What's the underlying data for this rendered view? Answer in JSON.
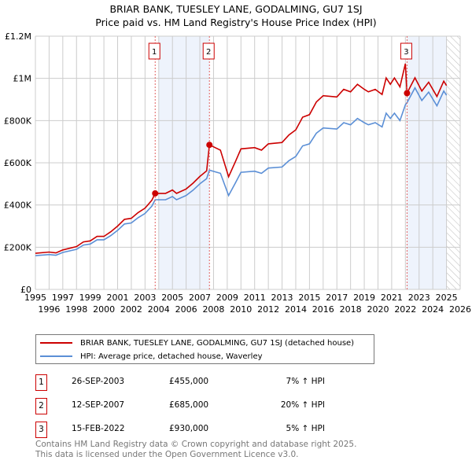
{
  "chart_data": {
    "type": "line",
    "title": "BRIAR BANK, TUESLEY LANE, GODALMING, GU7 1SJ",
    "subtitle": "Price paid vs. HM Land Registry's House Price Index (HPI)",
    "xlim": [
      1995,
      2026
    ],
    "ylim": [
      0,
      1200000
    ],
    "x_ticks": [
      "1995",
      "1996",
      "1997",
      "1998",
      "1999",
      "2000",
      "2001",
      "2002",
      "2003",
      "2004",
      "2005",
      "2006",
      "2007",
      "2008",
      "2009",
      "2010",
      "2011",
      "2012",
      "2013",
      "2014",
      "2015",
      "2016",
      "2017",
      "2018",
      "2019",
      "2020",
      "2021",
      "2022",
      "2023",
      "2024",
      "2025",
      "2026"
    ],
    "y_ticks": [
      {
        "v": 0,
        "label": "£0"
      },
      {
        "v": 200000,
        "label": "£200K"
      },
      {
        "v": 400000,
        "label": "£400K"
      },
      {
        "v": 600000,
        "label": "£600K"
      },
      {
        "v": 800000,
        "label": "£800K"
      },
      {
        "v": 1000000,
        "label": "£1M"
      },
      {
        "v": 1200000,
        "label": "£1.2M"
      }
    ],
    "x": [
      1995,
      1996,
      1996.5,
      1997,
      1998,
      1998.5,
      1999,
      1999.5,
      2000,
      2000.5,
      2001,
      2001.5,
      2002,
      2002.5,
      2003,
      2003.5,
      2003.74,
      2004.5,
      2005,
      2005.3,
      2006,
      2006.5,
      2007,
      2007.5,
      2007.7,
      2008.5,
      2009.1,
      2009.6,
      2010,
      2011,
      2011.5,
      2012,
      2013,
      2013.5,
      2014,
      2014.5,
      2015,
      2015.5,
      2016,
      2017,
      2017.5,
      2018,
      2018.5,
      2019,
      2019.3,
      2019.8,
      2020.3,
      2020.6,
      2020.9,
      2021.2,
      2021.6,
      2022.0,
      2022.12,
      2022.7,
      2023.2,
      2023.7,
      2024.3,
      2024.8,
      2025.0
    ],
    "series": [
      {
        "name": "BRIAR BANK, TUESLEY LANE, GODALMING, GU7 1SJ (detached house)",
        "color": "#cc0000",
        "values_k": [
          171,
          177,
          173,
          187,
          203,
          225,
          230,
          251,
          251,
          273,
          300,
          332,
          337,
          364,
          385,
          423,
          455,
          455,
          471,
          455,
          476,
          503,
          535,
          562,
          685,
          660,
          534,
          606,
          666,
          672,
          660,
          690,
          696,
          732,
          756,
          816,
          828,
          888,
          918,
          912,
          948,
          936,
          972,
          948,
          936,
          948,
          924,
          1002,
          972,
          1002,
          960,
          1070,
          930,
          1003,
          940,
          982,
          914,
          987,
          966
        ]
      },
      {
        "name": "HPI: Average price, detached house, Waverley",
        "color": "#5b8fd6",
        "values_k": [
          160,
          165,
          162,
          175,
          190,
          210,
          215,
          235,
          235,
          255,
          280,
          310,
          315,
          340,
          360,
          395,
          425,
          425,
          440,
          425,
          445,
          470,
          500,
          525,
          565,
          550,
          445,
          505,
          555,
          560,
          550,
          575,
          580,
          610,
          630,
          680,
          690,
          740,
          765,
          760,
          790,
          780,
          810,
          790,
          780,
          790,
          770,
          835,
          810,
          835,
          800,
          875,
          885,
          955,
          895,
          935,
          870,
          940,
          920
        ]
      }
    ],
    "sales": [
      {
        "n": "1",
        "x": 2003.74,
        "price": 455000,
        "date": "26-SEP-2003",
        "price_label": "£455,000",
        "hpi": "7% ↑ HPI"
      },
      {
        "n": "2",
        "x": 2007.7,
        "price": 685000,
        "date": "12-SEP-2007",
        "price_label": "£685,000",
        "hpi": "20% ↑ HPI"
      },
      {
        "n": "3",
        "x": 2022.12,
        "price": 930000,
        "date": "15-FEB-2022",
        "price_label": "£930,000",
        "hpi": "5% ↑ HPI"
      }
    ],
    "shaded_ranges": [
      [
        2004.0,
        2007.7
      ],
      [
        2022.12,
        2025.0
      ]
    ],
    "forecast_hatch_from": 2025.0
  },
  "footer": [
    "Contains HM Land Registry data © Crown copyright and database right 2025.",
    "This data is licensed under the Open Government Licence v3.0."
  ],
  "colors": {
    "red": "#cc0000",
    "blue": "#5b8fd6"
  }
}
